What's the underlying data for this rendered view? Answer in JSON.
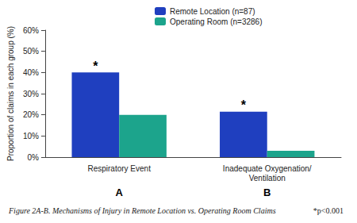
{
  "chart_data": {
    "type": "bar",
    "title": "Figure 2A-B. Mechanisms of Injury in Remote Location vs. Operating Room Claims",
    "footnote": "*p<0.001",
    "y_label": "Proportion of claims in each group (%)",
    "categories": [
      "Respiratory Event",
      "Inadequate Oxygenation/Ventilation"
    ],
    "panel_labels": [
      "A",
      "B"
    ],
    "series": [
      {
        "name": "Remote Location (n=87)",
        "color": "#1f3fbf",
        "values": [
          40,
          21.5
        ]
      },
      {
        "name": "Operating Room (n=3286)",
        "color": "#1ca48c",
        "values": [
          20,
          3
        ]
      }
    ],
    "annotations": [
      {
        "text": "*",
        "series": "Remote Location (n=87)",
        "category": "Respiratory Event"
      },
      {
        "text": "*",
        "series": "Remote Location (n=87)",
        "category": "Inadequate Oxygenation/Ventilation"
      }
    ],
    "ylim": [
      0,
      60
    ],
    "yticks": [
      {
        "value": 0,
        "label": "0%"
      },
      {
        "value": 10,
        "label": "10%"
      },
      {
        "value": 20,
        "label": "20%"
      },
      {
        "value": 30,
        "label": "30%"
      },
      {
        "value": 40,
        "label": "40%"
      },
      {
        "value": 50,
        "label": "50%"
      },
      {
        "value": 60,
        "label": "60%"
      }
    ],
    "grid": false,
    "legend": "top"
  }
}
